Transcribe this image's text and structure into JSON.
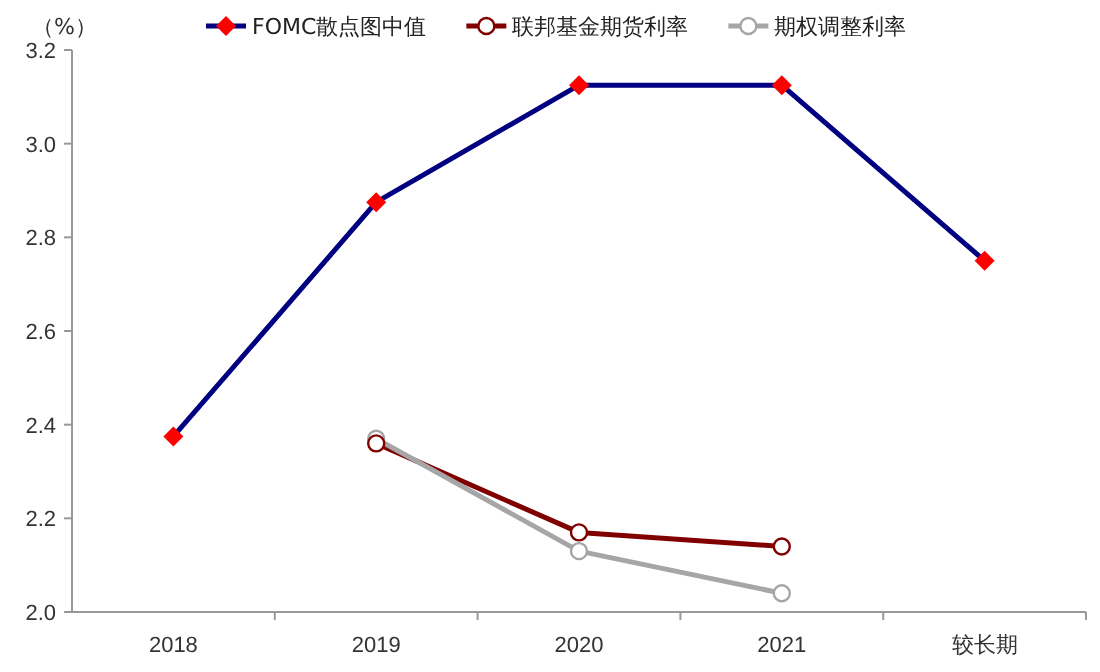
{
  "chart_data": {
    "type": "line",
    "ylabel": "（%）",
    "categories": [
      "2018",
      "2019",
      "2020",
      "2021",
      "较长期"
    ],
    "ylim": [
      2.0,
      3.2
    ],
    "yticks": [
      {
        "value": 2.0,
        "label": "2.0"
      },
      {
        "value": 2.2,
        "label": "2.2"
      },
      {
        "value": 2.4,
        "label": "2.4"
      },
      {
        "value": 2.6,
        "label": "2.6"
      },
      {
        "value": 2.8,
        "label": "2.8"
      },
      {
        "value": 3.0,
        "label": "3.0"
      },
      {
        "value": 3.2,
        "label": "3.2"
      }
    ],
    "legend": "top",
    "grid": false,
    "series": [
      {
        "name": "FOMC散点图中值",
        "color": "#000080",
        "marker": "diamond",
        "values": [
          2.375,
          2.875,
          3.125,
          3.125,
          2.75
        ]
      },
      {
        "name": "联邦基金期货利率",
        "color": "#800000",
        "marker": "circle",
        "values": [
          null,
          2.36,
          2.17,
          2.14,
          null
        ]
      },
      {
        "name": "期权调整利率",
        "color": "#a6a6a6",
        "marker": "circle",
        "values": [
          null,
          2.37,
          2.13,
          2.04,
          null
        ]
      }
    ]
  }
}
